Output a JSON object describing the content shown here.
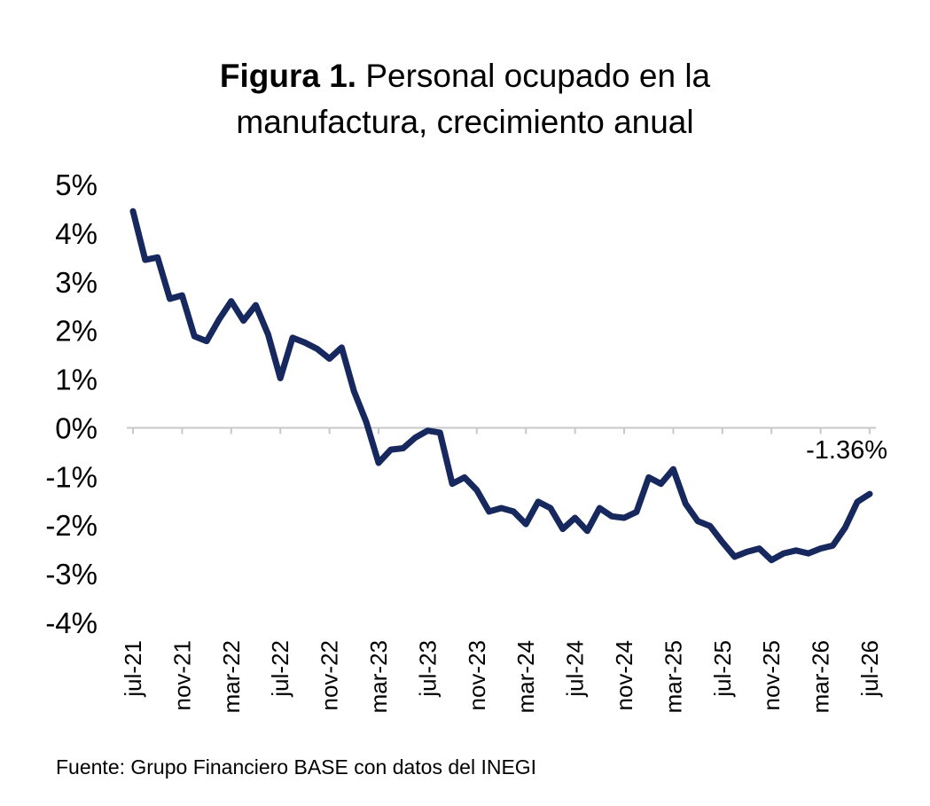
{
  "header": {
    "title_bold": "Figura 1.",
    "title_rest_line1": " Personal ocupado en la",
    "title_line2": "manufactura, crecimiento anual"
  },
  "footer": {
    "source": "Fuente: Grupo Financiero BASE con datos del INEGI"
  },
  "chart_data": {
    "type": "line",
    "title": "Figura 1. Personal ocupado en la manufactura, crecimiento anual",
    "xlabel": "",
    "ylabel": "",
    "ylim": [
      -4,
      5
    ],
    "y_ticks": [
      "5%",
      "4%",
      "3%",
      "2%",
      "1%",
      "0%",
      "-1%",
      "-2%",
      "-3%",
      "-4%"
    ],
    "y_tick_values": [
      5,
      4,
      3,
      2,
      1,
      0,
      -1,
      -2,
      -3,
      -4
    ],
    "x_tick_labels": [
      "jul-21",
      "nov-21",
      "mar-22",
      "jul-22",
      "nov-22",
      "mar-23",
      "jul-23",
      "nov-23",
      "mar-24",
      "jul-24",
      "nov-24",
      "mar-25",
      "jul-25",
      "nov-25",
      "mar-26",
      "jul-26"
    ],
    "x_tick_indices": [
      0,
      4,
      8,
      12,
      16,
      20,
      24,
      28,
      32,
      36,
      40,
      44,
      48,
      52,
      56,
      60
    ],
    "grid": false,
    "legend": "none",
    "line_color": "#16285e",
    "series": [
      {
        "values": [
          4.45,
          3.45,
          3.5,
          2.65,
          2.72,
          1.88,
          1.78,
          2.22,
          2.6,
          2.2,
          2.52,
          1.92,
          1.02,
          1.85,
          1.75,
          1.62,
          1.42,
          1.65,
          0.75,
          0.12,
          -0.72,
          -0.45,
          -0.42,
          -0.2,
          -0.06,
          -0.1,
          -1.15,
          -1.02,
          -1.28,
          -1.72,
          -1.65,
          -1.72,
          -1.98,
          -1.52,
          -1.65,
          -2.08,
          -1.85,
          -2.12,
          -1.65,
          -1.82,
          -1.85,
          -1.73,
          -1.02,
          -1.15,
          -0.85,
          -1.56,
          -1.92,
          -2.02,
          -2.35,
          -2.65,
          -2.55,
          -2.48,
          -2.72,
          -2.58,
          -2.52,
          -2.58,
          -2.48,
          -2.42,
          -2.05,
          -1.52,
          -1.36
        ]
      }
    ],
    "annotations": [
      {
        "text": "-1.36%",
        "x_index": 60,
        "value": -1.36
      }
    ]
  }
}
